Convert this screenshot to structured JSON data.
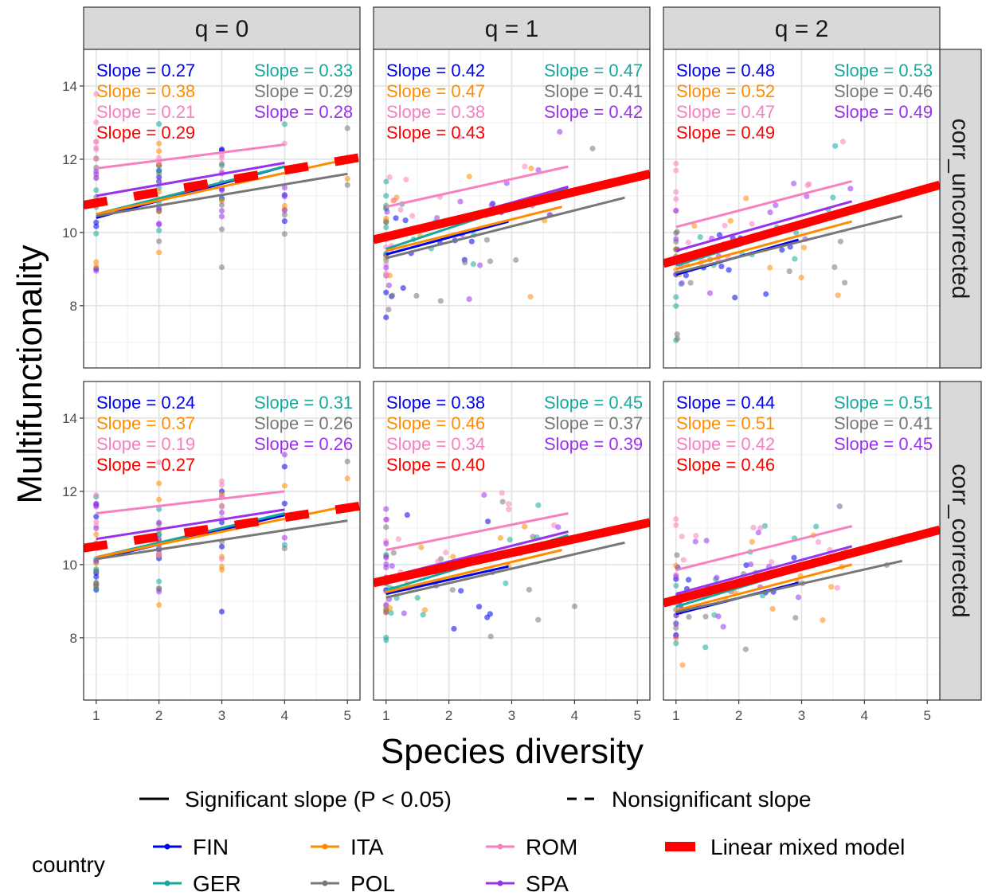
{
  "chart_data": {
    "type": "scatter",
    "xlabel": "Species diversity",
    "ylabel": "Multifunctionality",
    "xlim": [
      0.8,
      5.2
    ],
    "ylim": [
      6.3,
      15.0
    ],
    "x_ticks": [
      1,
      2,
      3,
      4,
      5
    ],
    "y_ticks": [
      8,
      10,
      12,
      14
    ],
    "grid": true,
    "legend_position": "bottom",
    "columns": [
      "q = 0",
      "q = 1",
      "q = 2"
    ],
    "rows": [
      "corr_uncorrected",
      "corr_corrected"
    ],
    "colors": {
      "FIN": "#0000ee",
      "GER": "#17a89d",
      "ITA": "#ff8c00",
      "POL": "#777777",
      "ROM": "#f780bf",
      "SPA": "#9932ee",
      "LMM": "#ff0000"
    },
    "ann_order": [
      "FIN",
      "GER",
      "ITA",
      "POL",
      "ROM",
      "SPA",
      "LMM"
    ],
    "slope_prefix": "Slope = ",
    "panels": [
      {
        "row": 0,
        "col": 0,
        "slopes": {
          "FIN": "0.27",
          "GER": "0.33",
          "ITA": "0.38",
          "POL": "0.29",
          "ROM": "0.21",
          "SPA": "0.28",
          "LMM": "0.29"
        },
        "lines": [
          {
            "country": "FIN",
            "x": [
              1,
              4
            ],
            "y": [
              10.4,
              11.8
            ],
            "sig": true
          },
          {
            "country": "GER",
            "x": [
              1,
              4
            ],
            "y": [
              10.5,
              11.8
            ],
            "sig": true
          },
          {
            "country": "ITA",
            "x": [
              1,
              5
            ],
            "y": [
              10.5,
              12.0
            ],
            "sig": true
          },
          {
            "country": "POL",
            "x": [
              1,
              5
            ],
            "y": [
              10.45,
              11.6
            ],
            "sig": true
          },
          {
            "country": "ROM",
            "x": [
              1,
              4
            ],
            "y": [
              11.75,
              12.4
            ],
            "sig": true
          },
          {
            "country": "SPA",
            "x": [
              1,
              4
            ],
            "y": [
              11.0,
              11.9
            ],
            "sig": true
          },
          {
            "country": "LMM",
            "x": [
              0.8,
              5.2
            ],
            "y": [
              10.75,
              12.05
            ],
            "sig": false
          }
        ]
      },
      {
        "row": 0,
        "col": 1,
        "slopes": {
          "FIN": "0.42",
          "GER": "0.47",
          "ITA": "0.47",
          "POL": "0.41",
          "ROM": "0.38",
          "SPA": "0.42",
          "LMM": "0.43"
        },
        "lines": [
          {
            "country": "FIN",
            "x": [
              1,
              2.95
            ],
            "y": [
              9.4,
              10.3
            ],
            "sig": true
          },
          {
            "country": "GER",
            "x": [
              1,
              3.9
            ],
            "y": [
              9.55,
              11.2
            ],
            "sig": true
          },
          {
            "country": "ITA",
            "x": [
              1,
              3.8
            ],
            "y": [
              9.5,
              10.7
            ],
            "sig": true
          },
          {
            "country": "POL",
            "x": [
              1,
              4.8
            ],
            "y": [
              9.3,
              10.95
            ],
            "sig": true
          },
          {
            "country": "ROM",
            "x": [
              1,
              3.9
            ],
            "y": [
              10.7,
              11.8
            ],
            "sig": true
          },
          {
            "country": "SPA",
            "x": [
              1,
              3.9
            ],
            "y": [
              9.85,
              11.25
            ],
            "sig": true
          },
          {
            "country": "LMM",
            "x": [
              0.8,
              5.2
            ],
            "y": [
              9.8,
              11.6
            ],
            "sig": true
          }
        ]
      },
      {
        "row": 0,
        "col": 2,
        "slopes": {
          "FIN": "0.48",
          "GER": "0.53",
          "ITA": "0.52",
          "POL": "0.46",
          "ROM": "0.47",
          "SPA": "0.49",
          "LMM": "0.49"
        },
        "lines": [
          {
            "country": "FIN",
            "x": [
              1,
              2.95
            ],
            "y": [
              8.85,
              9.8
            ],
            "sig": true
          },
          {
            "country": "GER",
            "x": [
              1,
              3.8
            ],
            "y": [
              9.1,
              10.6
            ],
            "sig": true
          },
          {
            "country": "ITA",
            "x": [
              1,
              3.8
            ],
            "y": [
              9.0,
              10.3
            ],
            "sig": true
          },
          {
            "country": "POL",
            "x": [
              1,
              4.6
            ],
            "y": [
              8.9,
              10.45
            ],
            "sig": true
          },
          {
            "country": "ROM",
            "x": [
              1,
              3.8
            ],
            "y": [
              10.15,
              11.4
            ],
            "sig": true
          },
          {
            "country": "SPA",
            "x": [
              1,
              3.8
            ],
            "y": [
              9.5,
              10.85
            ],
            "sig": true
          },
          {
            "country": "LMM",
            "x": [
              0.8,
              5.2
            ],
            "y": [
              9.15,
              11.3
            ],
            "sig": true
          }
        ]
      },
      {
        "row": 1,
        "col": 0,
        "slopes": {
          "FIN": "0.24",
          "GER": "0.31",
          "ITA": "0.37",
          "POL": "0.26",
          "ROM": "0.19",
          "SPA": "0.26",
          "LMM": "0.27"
        },
        "lines": [
          {
            "country": "FIN",
            "x": [
              1,
              4
            ],
            "y": [
              10.15,
              11.35
            ],
            "sig": true
          },
          {
            "country": "GER",
            "x": [
              1,
              4
            ],
            "y": [
              10.2,
              11.4
            ],
            "sig": true
          },
          {
            "country": "ITA",
            "x": [
              1,
              5
            ],
            "y": [
              10.2,
              11.6
            ],
            "sig": true
          },
          {
            "country": "POL",
            "x": [
              1,
              5
            ],
            "y": [
              10.15,
              11.2
            ],
            "sig": true
          },
          {
            "country": "ROM",
            "x": [
              1,
              4
            ],
            "y": [
              11.4,
              12.0
            ],
            "sig": true
          },
          {
            "country": "SPA",
            "x": [
              1,
              4
            ],
            "y": [
              10.7,
              11.5
            ],
            "sig": true
          },
          {
            "country": "LMM",
            "x": [
              0.8,
              5.2
            ],
            "y": [
              10.45,
              11.6
            ],
            "sig": false
          }
        ]
      },
      {
        "row": 1,
        "col": 1,
        "slopes": {
          "FIN": "0.38",
          "GER": "0.45",
          "ITA": "0.46",
          "POL": "0.37",
          "ROM": "0.34",
          "SPA": "0.39",
          "LMM": "0.40"
        },
        "lines": [
          {
            "country": "FIN",
            "x": [
              1,
              2.95
            ],
            "y": [
              9.2,
              9.95
            ],
            "sig": true
          },
          {
            "country": "GER",
            "x": [
              1,
              3.9
            ],
            "y": [
              9.3,
              10.8
            ],
            "sig": true
          },
          {
            "country": "ITA",
            "x": [
              1,
              3.8
            ],
            "y": [
              9.25,
              10.4
            ],
            "sig": true
          },
          {
            "country": "POL",
            "x": [
              1,
              4.8
            ],
            "y": [
              9.1,
              10.6
            ],
            "sig": true
          },
          {
            "country": "ROM",
            "x": [
              1,
              3.9
            ],
            "y": [
              10.4,
              11.4
            ],
            "sig": true
          },
          {
            "country": "SPA",
            "x": [
              1,
              3.9
            ],
            "y": [
              9.65,
              10.9
            ],
            "sig": true
          },
          {
            "country": "LMM",
            "x": [
              0.8,
              5.2
            ],
            "y": [
              9.5,
              11.15
            ],
            "sig": true
          }
        ]
      },
      {
        "row": 1,
        "col": 2,
        "slopes": {
          "FIN": "0.44",
          "GER": "0.51",
          "ITA": "0.51",
          "POL": "0.41",
          "ROM": "0.42",
          "SPA": "0.45",
          "LMM": "0.46"
        },
        "lines": [
          {
            "country": "FIN",
            "x": [
              1,
              2.95
            ],
            "y": [
              8.65,
              9.5
            ],
            "sig": true
          },
          {
            "country": "GER",
            "x": [
              1,
              3.8
            ],
            "y": [
              8.85,
              10.3
            ],
            "sig": true
          },
          {
            "country": "ITA",
            "x": [
              1,
              3.8
            ],
            "y": [
              8.75,
              10.0
            ],
            "sig": true
          },
          {
            "country": "POL",
            "x": [
              1,
              4.6
            ],
            "y": [
              8.7,
              10.1
            ],
            "sig": true
          },
          {
            "country": "ROM",
            "x": [
              1,
              3.8
            ],
            "y": [
              9.85,
              11.05
            ],
            "sig": true
          },
          {
            "country": "SPA",
            "x": [
              1,
              3.8
            ],
            "y": [
              9.2,
              10.5
            ],
            "sig": true
          },
          {
            "country": "LMM",
            "x": [
              0.8,
              5.2
            ],
            "y": [
              8.95,
              10.95
            ],
            "sig": true
          }
        ]
      }
    ],
    "legend": {
      "linetype_items": [
        {
          "label": "Significant slope (P < 0.05)",
          "style": "solid"
        },
        {
          "label": "Nonsignificant slope",
          "style": "dashed"
        }
      ],
      "country_title": "country",
      "country_items": [
        {
          "key": "FIN",
          "label": "FIN"
        },
        {
          "key": "GER",
          "label": "GER"
        },
        {
          "key": "ITA",
          "label": "ITA"
        },
        {
          "key": "POL",
          "label": "POL"
        },
        {
          "key": "ROM",
          "label": "ROM"
        },
        {
          "key": "SPA",
          "label": "SPA"
        }
      ],
      "lmm_label": "Linear mixed model"
    }
  }
}
